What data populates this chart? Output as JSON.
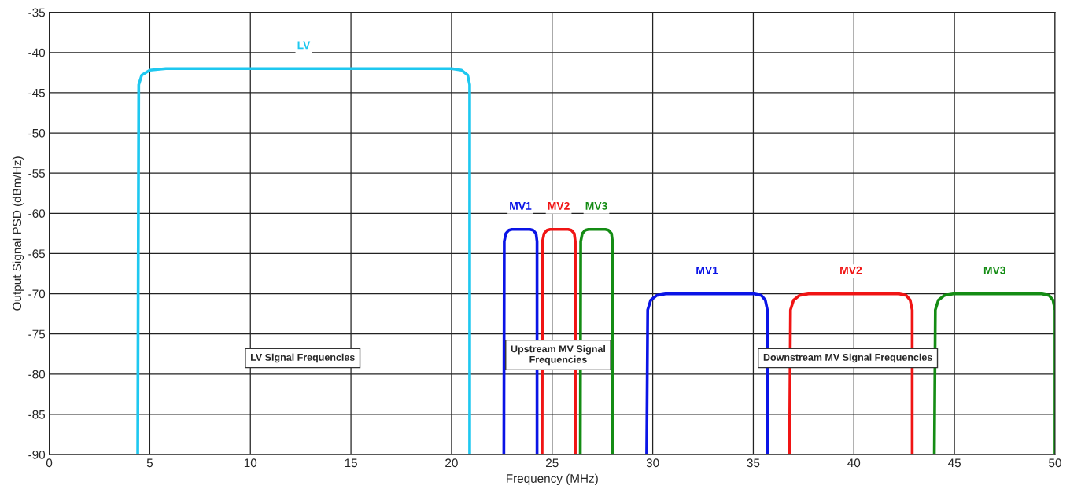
{
  "chart_data": {
    "type": "line",
    "xlabel": "Frequency (MHz)",
    "ylabel": "Output Signal PSD (dBm/Hz)",
    "xlim": [
      0,
      50
    ],
    "xticks": [
      0,
      5,
      10,
      15,
      20,
      25,
      30,
      35,
      40,
      45,
      50
    ],
    "ylim": [
      -90,
      -35
    ],
    "yticks": [
      -90,
      -85,
      -80,
      -75,
      -70,
      -65,
      -60,
      -55,
      -50,
      -45,
      -40,
      -35
    ],
    "grid": true,
    "series": [
      {
        "name": "LV",
        "color": "#1ec8f0",
        "x": [
          4.4,
          4.45,
          4.6,
          5.0,
          5.8,
          20.0,
          20.5,
          20.8,
          20.9,
          20.9
        ],
        "values": [
          -90,
          -44,
          -42.8,
          -42.2,
          -42,
          -42,
          -42.2,
          -42.8,
          -44,
          -90
        ]
      },
      {
        "name": "MV1",
        "color": "#0a14e6",
        "x": [
          22.6,
          22.62,
          22.7,
          22.85,
          23.0,
          23.9,
          24.05,
          24.2,
          24.25,
          24.25
        ],
        "values": [
          -90,
          -63.5,
          -62.5,
          -62.1,
          -62,
          -62,
          -62.1,
          -62.5,
          -63.5,
          -90
        ]
      },
      {
        "name": "MV2",
        "color": "#f01414",
        "x": [
          24.5,
          24.52,
          24.6,
          24.75,
          24.9,
          25.8,
          25.95,
          26.1,
          26.15,
          26.15
        ],
        "values": [
          -90,
          -63.5,
          -62.5,
          -62.1,
          -62,
          -62,
          -62.1,
          -62.5,
          -63.5,
          -90
        ]
      },
      {
        "name": "MV3",
        "color": "#148c14",
        "x": [
          26.4,
          26.42,
          26.5,
          26.65,
          26.8,
          27.65,
          27.8,
          27.95,
          28.0,
          28.0
        ],
        "values": [
          -90,
          -63.5,
          -62.5,
          -62.1,
          -62,
          -62,
          -62.1,
          -62.5,
          -63.5,
          -90
        ]
      },
      {
        "name": "MV1",
        "color": "#0a14e6",
        "x": [
          29.7,
          29.75,
          29.9,
          30.2,
          30.7,
          35.0,
          35.4,
          35.6,
          35.7,
          35.7
        ],
        "values": [
          -90,
          -72,
          -70.8,
          -70.2,
          -70,
          -70,
          -70.2,
          -70.8,
          -72,
          -90
        ]
      },
      {
        "name": "MV2",
        "color": "#f01414",
        "x": [
          36.8,
          36.85,
          37.0,
          37.3,
          37.8,
          42.2,
          42.6,
          42.8,
          42.9,
          42.9
        ],
        "values": [
          -90,
          -72,
          -70.8,
          -70.2,
          -70,
          -70,
          -70.2,
          -70.8,
          -72,
          -90
        ]
      },
      {
        "name": "MV3",
        "color": "#148c14",
        "x": [
          44.0,
          44.05,
          44.2,
          44.5,
          45.0,
          49.3,
          49.7,
          49.9,
          50.0,
          50.0
        ],
        "values": [
          -90,
          -72,
          -70.8,
          -70.2,
          -70,
          -70,
          -70.2,
          -70.8,
          -72,
          -90
        ]
      }
    ],
    "annotations": [
      "LV Signal Frequencies",
      "Upstream MV Signal\nFrequencies",
      "Downstream MV Signal Frequencies"
    ]
  }
}
